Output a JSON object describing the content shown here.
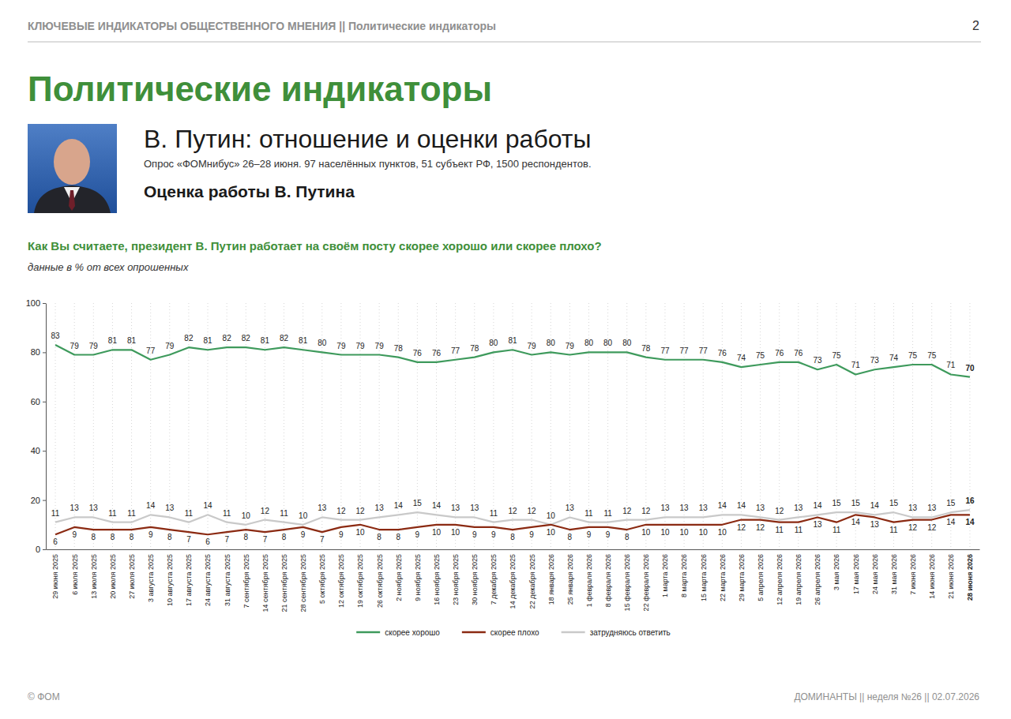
{
  "page": {
    "header": "КЛЮЧЕВЫЕ ИНДИКАТОРЫ ОБЩЕСТВЕННОГО МНЕНИЯ || Политические индикаторы",
    "page_number": "2",
    "section_title": "Политические индикаторы",
    "topic_title": "В. Путин: отношение и оценки работы",
    "survey_note": "Опрос «ФОМнибус» 26–28 июня. 97 населённых пунктов, 51 субъект РФ, 1500 респондентов.",
    "indicator_title": "Оценка работы В. Путина",
    "footer_left": "© ФОМ",
    "footer_right": "ДОМИНАНТЫ || неделя №26 || 02.07.2026"
  },
  "chart_data": {
    "type": "line",
    "title": "Как Вы считаете, президент В. Путин работает на своём посту скорее хорошо или скорее плохо?",
    "subtitle": "данные в % от всех опрошенных",
    "categories": [
      "29 июня 2025",
      "6 июля 2025",
      "13 июля 2025",
      "20 июля 2025",
      "27 июля 2025",
      "3 августа 2025",
      "10 августа 2025",
      "17 августа 2025",
      "24 августа 2025",
      "31 августа 2025",
      "7 сентября 2025",
      "14 сентября 2025",
      "21 сентября 2025",
      "28 сентября 2025",
      "5 октября 2025",
      "12 октября 2025",
      "19 октября 2025",
      "26 октября 2025",
      "2 ноября 2025",
      "9 ноября 2025",
      "16 ноября 2025",
      "23 ноября 2025",
      "30 ноября 2025",
      "7 декабря 2025",
      "14 декабря 2025",
      "22 декабря 2025",
      "18 января 2026",
      "25 января 2026",
      "1 февраля 2026",
      "8 февраля 2026",
      "15 февраля 2026",
      "22 февраля 2026",
      "1 марта 2026",
      "8 марта 2026",
      "15 марта 2026",
      "22 марта 2026",
      "29 марта 2026",
      "5 апреля 2026",
      "12 апреля 2026",
      "19 апреля 2026",
      "26 апреля 2026",
      "3 мая 2026",
      "17 мая 2026",
      "24 мая 2026",
      "31 мая 2026",
      "7 июня 2026",
      "14 июня 2026",
      "21 июня 2026",
      "28 июня 2026"
    ],
    "series": [
      {
        "name": "скорее хорошо",
        "color": "#3e9a5c",
        "values": [
          83,
          79,
          79,
          81,
          81,
          77,
          79,
          82,
          81,
          82,
          82,
          81,
          82,
          81,
          80,
          79,
          79,
          79,
          78,
          76,
          76,
          77,
          78,
          80,
          81,
          79,
          80,
          79,
          80,
          80,
          80,
          78,
          77,
          77,
          77,
          76,
          74,
          75,
          76,
          76,
          73,
          75,
          71,
          73,
          74,
          75,
          75,
          71,
          70
        ]
      },
      {
        "name": "скорее плохо",
        "color": "#8b2a12",
        "values": [
          6,
          9,
          8,
          8,
          8,
          9,
          8,
          7,
          6,
          7,
          8,
          7,
          8,
          9,
          7,
          9,
          10,
          8,
          8,
          9,
          10,
          10,
          9,
          9,
          8,
          9,
          10,
          8,
          9,
          9,
          8,
          10,
          10,
          10,
          10,
          10,
          12,
          12,
          11,
          11,
          13,
          11,
          14,
          13,
          11,
          12,
          12,
          14,
          14
        ]
      },
      {
        "name": "затрудняюсь ответить",
        "color": "#c9c9c9",
        "values": [
          11,
          13,
          13,
          11,
          11,
          14,
          13,
          11,
          14,
          11,
          10,
          12,
          11,
          10,
          13,
          12,
          12,
          13,
          14,
          15,
          14,
          13,
          13,
          11,
          12,
          12,
          10,
          13,
          11,
          11,
          12,
          12,
          13,
          13,
          13,
          14,
          14,
          13,
          12,
          13,
          14,
          15,
          15,
          14,
          15,
          13,
          13,
          15,
          16
        ]
      }
    ],
    "ylim": [
      0,
      100
    ],
    "yticks": [
      0,
      20,
      40,
      60,
      80,
      100
    ],
    "grid": true,
    "legend": "bottom",
    "data_labels": true
  }
}
